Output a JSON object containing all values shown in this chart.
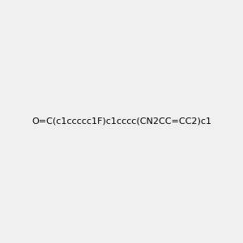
{
  "smiles": "O=C(c1ccccc1F)c1cccc(CN2CC=CC2)c1",
  "image_size": 300,
  "background_color": "#f0f0f0",
  "title": ""
}
